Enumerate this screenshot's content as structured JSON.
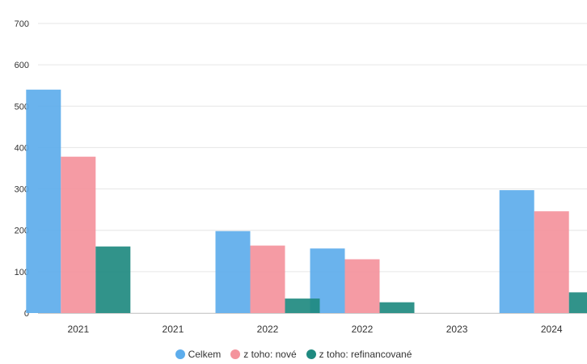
{
  "chart_data": {
    "type": "bar",
    "title": "",
    "xlabel": "",
    "ylabel": "",
    "ylim": [
      0,
      700
    ],
    "yticks": [
      0,
      100,
      200,
      300,
      400,
      500,
      600,
      700
    ],
    "grid": true,
    "legend_position": "bottom-center",
    "categories": [
      "2021",
      "2021",
      "2022",
      "2022",
      "2023",
      "2024"
    ],
    "series": [
      {
        "name": "Celkem",
        "color": "#5DADEC",
        "values": [
          540,
          null,
          198,
          156,
          null,
          297
        ]
      },
      {
        "name": "z toho: nové",
        "color": "#F4939C",
        "values": [
          378,
          null,
          163,
          130,
          null,
          246
        ]
      },
      {
        "name": "z toho: refinancované",
        "color": "#1F8A80",
        "values": [
          161,
          null,
          35,
          26,
          null,
          50
        ]
      }
    ]
  }
}
